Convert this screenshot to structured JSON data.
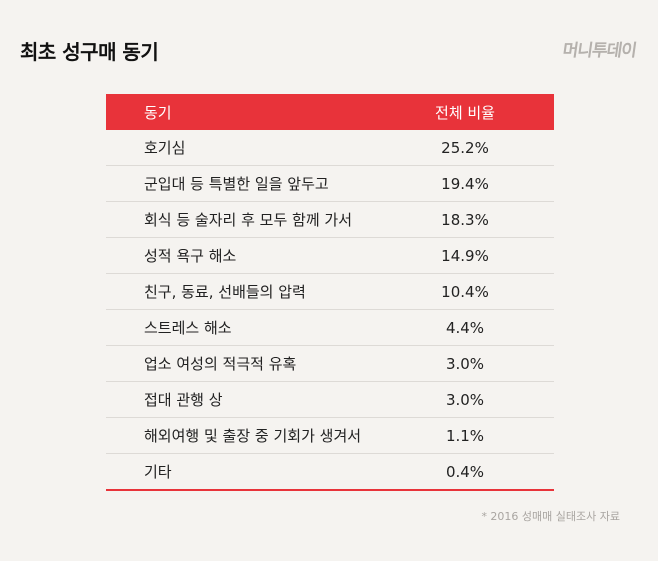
{
  "title": "최초 성구매 동기",
  "logo": "머니투데이",
  "source": "* 2016 성매매 실태조사 자료",
  "chart_data": {
    "type": "table",
    "title": "최초 성구매 동기",
    "columns": [
      "동기",
      "전체 비율"
    ],
    "rows": [
      {
        "label": "호기심",
        "value": "25.2%"
      },
      {
        "label": "군입대 등 특별한 일을 앞두고",
        "value": "19.4%"
      },
      {
        "label": "회식 등 술자리 후 모두 함께 가서",
        "value": "18.3%"
      },
      {
        "label": "성적 욕구 해소",
        "value": "14.9%"
      },
      {
        "label": "친구, 동료, 선배들의 압력",
        "value": "10.4%"
      },
      {
        "label": "스트레스 해소",
        "value": "4.4%"
      },
      {
        "label": "업소 여성의 적극적 유혹",
        "value": "3.0%"
      },
      {
        "label": "접대 관행 상",
        "value": "3.0%"
      },
      {
        "label": "해외여행 및 출장 중 기회가 생겨서",
        "value": "1.1%"
      },
      {
        "label": "기타",
        "value": "0.4%"
      }
    ]
  },
  "colors": {
    "accent": "#e8333a",
    "background": "#f5f3f0"
  }
}
